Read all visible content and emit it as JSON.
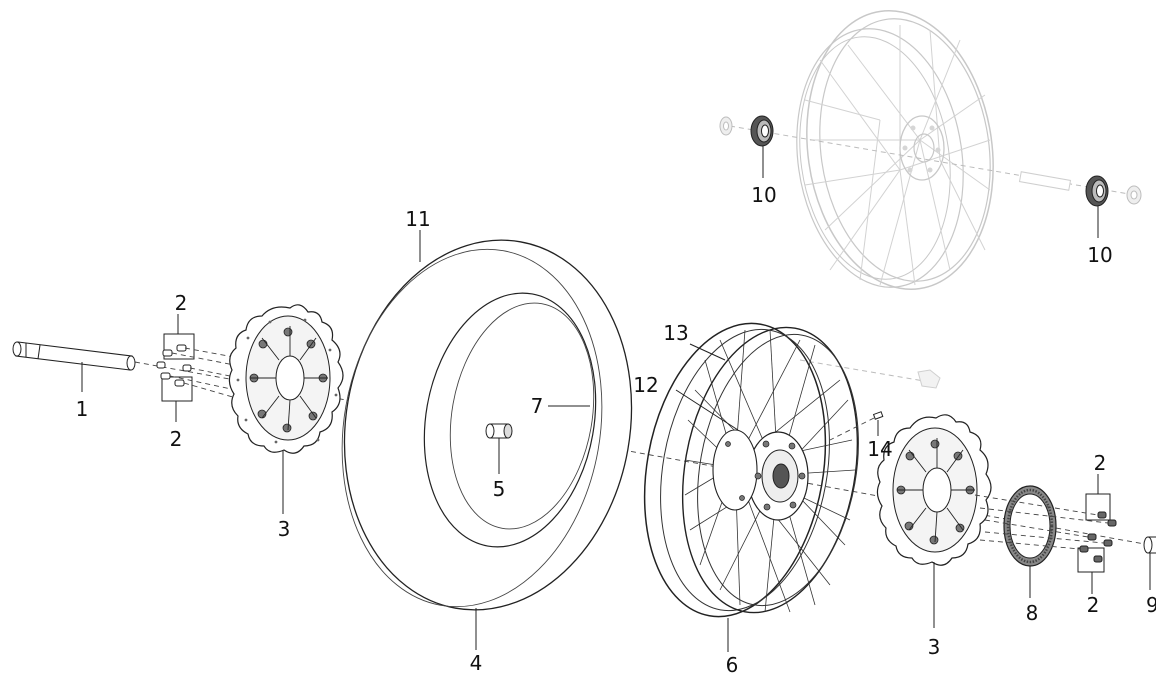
{
  "labels": {
    "axle": "1",
    "bolts_top_left": "2",
    "bolts_bottom_left": "2",
    "bolts_top_right": "2",
    "bolts_bottom_right": "2",
    "disc_left": "3",
    "disc_right": "3",
    "tire": "4",
    "spacer": "5",
    "rim": "6",
    "inner_tube": "7",
    "tone_wheel": "8",
    "spacer_right": "9",
    "bearing_left": "10",
    "bearing_right": "10",
    "tire_band": "11",
    "hub_12": "12",
    "spoke_13": "13",
    "valve": "14"
  }
}
